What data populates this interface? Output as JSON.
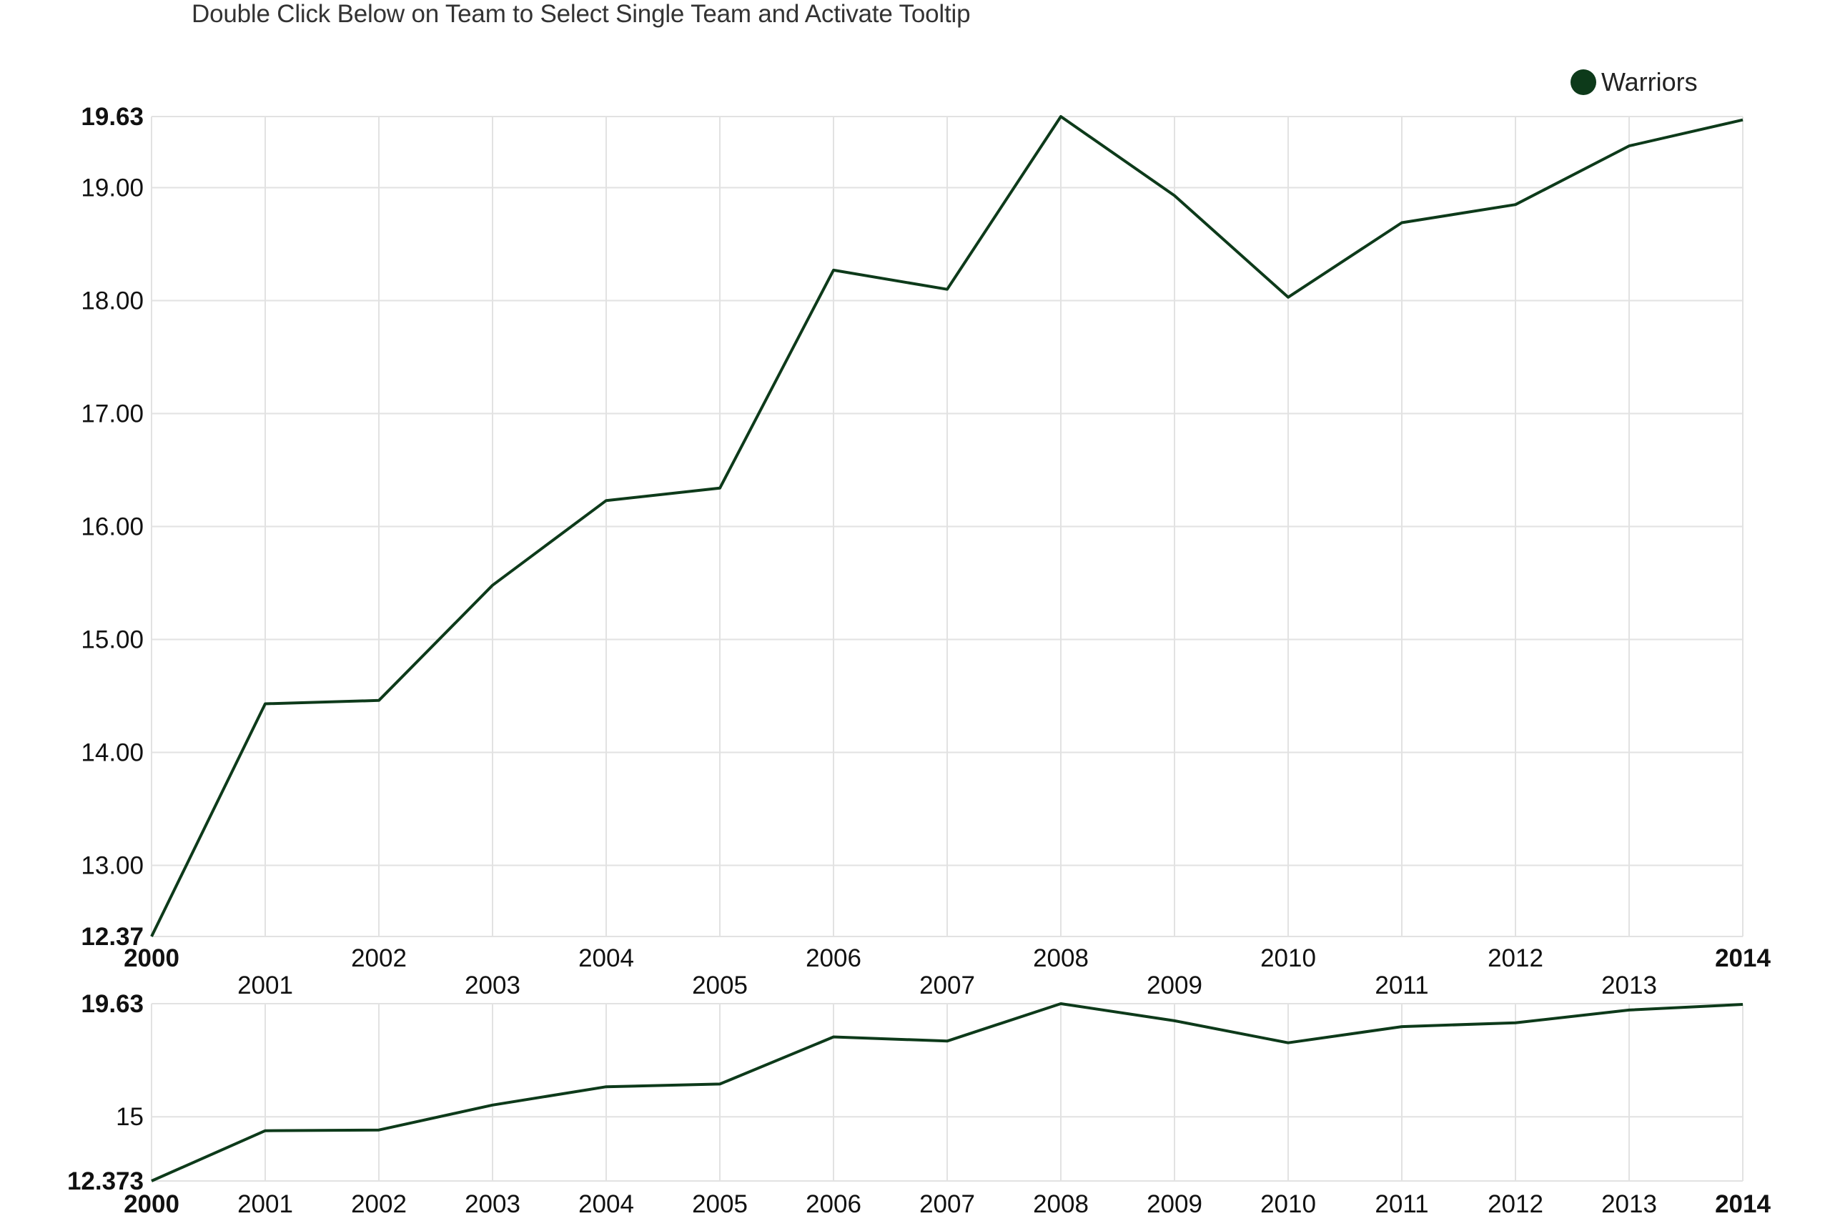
{
  "instruction": "Double Click Below on Team to Select Single Team and Activate Tooltip",
  "colors": {
    "series": "#0d3a1a",
    "grid": "#e2e2e2"
  },
  "chart_data": [
    {
      "type": "line",
      "role": "focus",
      "x": [
        2000,
        2001,
        2002,
        2003,
        2004,
        2005,
        2006,
        2007,
        2008,
        2009,
        2010,
        2011,
        2012,
        2013,
        2014
      ],
      "series": [
        {
          "name": "Warriors",
          "values": [
            12.37,
            14.43,
            14.46,
            15.48,
            16.23,
            16.34,
            18.27,
            18.1,
            19.63,
            18.93,
            18.03,
            18.69,
            18.85,
            19.37,
            19.6
          ]
        }
      ],
      "ylim": [
        12.37,
        19.63
      ],
      "xlim": [
        2000,
        2014
      ],
      "y_ticks": [
        "12.37",
        "13.00",
        "14.00",
        "15.00",
        "16.00",
        "17.00",
        "18.00",
        "19.00",
        "19.63"
      ],
      "x_ticks": [
        "2000",
        "2001",
        "2002",
        "2003",
        "2004",
        "2005",
        "2006",
        "2007",
        "2008",
        "2009",
        "2010",
        "2011",
        "2012",
        "2013",
        "2014"
      ],
      "legend": "top-right",
      "grid": true
    },
    {
      "type": "line",
      "role": "context",
      "x": [
        2000,
        2001,
        2002,
        2003,
        2004,
        2005,
        2006,
        2007,
        2008,
        2009,
        2010,
        2011,
        2012,
        2013,
        2014
      ],
      "series": [
        {
          "values": [
            12.373,
            14.43,
            14.46,
            15.48,
            16.23,
            16.34,
            18.27,
            18.1,
            19.63,
            18.93,
            18.03,
            18.69,
            18.85,
            19.37,
            19.6
          ]
        }
      ],
      "ylim": [
        12.373,
        19.63
      ],
      "xlim": [
        2000,
        2014
      ],
      "y_ticks": [
        "12.373",
        "15",
        "19.63"
      ],
      "x_ticks": [
        "2000",
        "2001",
        "2002",
        "2003",
        "2004",
        "2005",
        "2006",
        "2007",
        "2008",
        "2009",
        "2010",
        "2011",
        "2012",
        "2013",
        "2014"
      ],
      "grid": true
    }
  ]
}
